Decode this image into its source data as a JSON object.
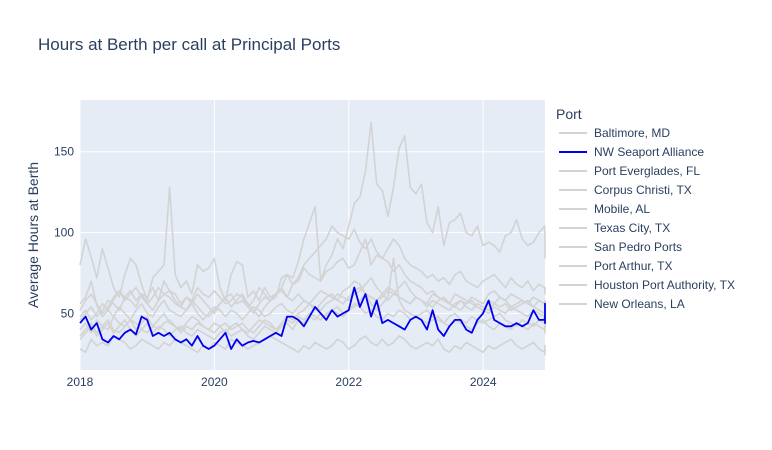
{
  "chart_data": {
    "type": "line",
    "title": "Hours at Berth per call at Principal Ports",
    "xlabel": "",
    "ylabel": "Average Hours at Berth",
    "x_ticks": [
      "2018",
      "2020",
      "2022",
      "2024"
    ],
    "y_ticks": [
      50,
      100,
      150
    ],
    "xlim": [
      2018.0,
      2024.92
    ],
    "ylim": [
      15,
      182
    ],
    "grid": true,
    "legend": {
      "title": "Port",
      "placement": "right"
    },
    "x_start": 2018.0,
    "x_step": 0.0833,
    "series": [
      {
        "name": "Baltimore, MD",
        "color": "#d3d3d3",
        "values": [
          80,
          96,
          85,
          72,
          90,
          78,
          66,
          60,
          74,
          84,
          80,
          68,
          58,
          72,
          76,
          80,
          128,
          74,
          66,
          70,
          62,
          80,
          76,
          78,
          84,
          66,
          58,
          74,
          82,
          80,
          60,
          64,
          58,
          66,
          60,
          62,
          66,
          74,
          72,
          82,
          96,
          106,
          116,
          70,
          80,
          86,
          96,
          90,
          104,
          118,
          122,
          138,
          168,
          130,
          126,
          110,
          128,
          152,
          160,
          128,
          124,
          130,
          106,
          100,
          116,
          92,
          106,
          108,
          112,
          100,
          98,
          104,
          92,
          94,
          92,
          88,
          98,
          100,
          108,
          96,
          92,
          94,
          100,
          104,
          96,
          90,
          86,
          84
        ]
      },
      {
        "name": "NW Seaport Alliance",
        "color": "#0000ee",
        "values": [
          44,
          48,
          40,
          44,
          34,
          32,
          36,
          34,
          38,
          40,
          37,
          48,
          46,
          36,
          38,
          36,
          38,
          34,
          32,
          34,
          30,
          36,
          30,
          28,
          30,
          34,
          38,
          28,
          34,
          30,
          32,
          33,
          32,
          34,
          36,
          38,
          36,
          48,
          48,
          46,
          42,
          48,
          54,
          50,
          46,
          52,
          48,
          50,
          52,
          66,
          54,
          62,
          48,
          58,
          44,
          46,
          44,
          42,
          40,
          46,
          48,
          46,
          40,
          52,
          40,
          36,
          42,
          46,
          46,
          40,
          38,
          46,
          50,
          58,
          46,
          44,
          42,
          42,
          44,
          42,
          44,
          52,
          46,
          46,
          48,
          44,
          56,
          52
        ]
      },
      {
        "name": "Port Everglades, FL",
        "color": "#d3d3d3",
        "values": [
          56,
          60,
          70,
          55,
          48,
          52,
          58,
          64,
          60,
          58,
          54,
          62,
          60,
          66,
          58,
          70,
          64,
          62,
          56,
          60,
          58,
          66,
          62,
          60,
          64,
          60,
          56,
          58,
          62,
          60,
          54,
          58,
          66,
          62,
          58,
          60,
          72,
          74,
          68,
          70,
          78,
          74,
          72,
          70,
          76,
          78,
          82,
          84,
          78,
          80,
          88,
          96,
          80,
          86,
          84,
          90,
          96,
          92,
          84,
          80,
          78,
          76,
          72,
          74,
          70,
          72,
          68,
          74,
          76,
          70,
          68,
          66,
          70,
          72,
          74,
          70,
          66,
          72,
          68,
          66,
          70,
          64,
          68,
          66,
          64,
          62,
          66,
          64
        ]
      },
      {
        "name": "Corpus Christi, TX",
        "color": "#d3d3d3",
        "values": [
          28,
          26,
          34,
          30,
          32,
          30,
          36,
          34,
          32,
          28,
          30,
          34,
          32,
          30,
          28,
          32,
          30,
          34,
          32,
          30,
          28,
          26,
          30,
          28,
          32,
          30,
          28,
          34,
          32,
          30,
          28,
          30,
          32,
          34,
          36,
          34,
          32,
          30,
          28,
          26,
          30,
          28,
          32,
          30,
          28,
          30,
          34,
          32,
          28,
          30,
          34,
          36,
          32,
          30,
          34,
          30,
          32,
          36,
          34,
          30,
          28,
          30,
          32,
          30,
          34,
          28,
          26,
          30,
          28,
          32,
          30,
          28,
          26,
          30,
          28,
          30,
          32,
          34,
          30,
          28,
          30,
          32,
          28,
          26,
          30,
          28,
          26,
          24
        ]
      },
      {
        "name": "Mobile, AL",
        "color": "#d3d3d3",
        "values": [
          52,
          58,
          62,
          56,
          50,
          54,
          60,
          64,
          58,
          62,
          66,
          60,
          56,
          52,
          58,
          62,
          60,
          56,
          54,
          52,
          58,
          54,
          50,
          48,
          52,
          56,
          60,
          54,
          58,
          62,
          56,
          52,
          48,
          54,
          58,
          62,
          66,
          60,
          58,
          62,
          58,
          56,
          60,
          64,
          62,
          60,
          58,
          64,
          66,
          70,
          68,
          62,
          60,
          58,
          60,
          64,
          62,
          60,
          58,
          56,
          60,
          58,
          56,
          62,
          60,
          58,
          56,
          54,
          58,
          56,
          60,
          58,
          56,
          62,
          64,
          60,
          58,
          62,
          60,
          58,
          56,
          60,
          58,
          56,
          58,
          54,
          56,
          52
        ]
      },
      {
        "name": "Texas City, TX",
        "color": "#d3d3d3",
        "values": [
          40,
          44,
          38,
          46,
          42,
          40,
          48,
          44,
          42,
          46,
          40,
          44,
          48,
          42,
          40,
          44,
          46,
          42,
          38,
          42,
          40,
          44,
          42,
          40,
          38,
          42,
          44,
          40,
          42,
          44,
          40,
          38,
          42,
          46,
          44,
          40,
          42,
          46,
          44,
          48,
          46,
          50,
          48,
          46,
          50,
          52,
          54,
          50,
          52,
          56,
          54,
          50,
          52,
          48,
          46,
          50,
          48,
          52,
          50,
          46,
          48,
          50,
          52,
          48,
          46,
          44,
          48,
          50,
          46,
          44,
          48,
          46,
          44,
          46,
          48,
          50,
          46,
          44,
          42,
          46,
          44,
          42,
          46,
          44,
          42,
          46,
          44,
          40
        ]
      },
      {
        "name": "San Pedro Ports",
        "color": "#d3d3d3",
        "values": [
          46,
          50,
          54,
          48,
          52,
          58,
          56,
          52,
          60,
          64,
          58,
          62,
          56,
          60,
          66,
          62,
          64,
          58,
          54,
          60,
          56,
          62,
          58,
          54,
          50,
          56,
          60,
          62,
          56,
          58,
          54,
          50,
          56,
          60,
          58,
          62,
          64,
          60,
          68,
          72,
          80,
          84,
          88,
          92,
          96,
          104,
          100,
          98,
          96,
          102,
          94,
          90,
          96,
          88,
          84,
          82,
          76,
          80,
          74,
          70,
          68,
          66,
          62,
          64,
          60,
          58,
          56,
          62,
          60,
          58,
          56,
          54,
          52,
          58,
          56,
          54,
          56,
          52,
          54,
          56,
          58,
          54,
          52,
          50,
          54,
          52,
          50,
          48
        ]
      },
      {
        "name": "Port Arthur, TX",
        "color": "#d3d3d3",
        "values": [
          34,
          38,
          42,
          36,
          40,
          44,
          38,
          42,
          46,
          40,
          36,
          40,
          44,
          38,
          42,
          40,
          36,
          40,
          42,
          38,
          36,
          40,
          38,
          36,
          34,
          38,
          40,
          36,
          38,
          40,
          36,
          34,
          38,
          42,
          40,
          38,
          42,
          44,
          40,
          46,
          44,
          48,
          46,
          50,
          48,
          52,
          50,
          48,
          52,
          54,
          58,
          62,
          56,
          52,
          56,
          60,
          84,
          58,
          52,
          50,
          48,
          46,
          44,
          46,
          48,
          44,
          42,
          46,
          44,
          42,
          40,
          44,
          46,
          42,
          40,
          44,
          42,
          40,
          44,
          42,
          40,
          44,
          42,
          40,
          42,
          40,
          38,
          40
        ]
      },
      {
        "name": "Houston Port Authority, TX",
        "color": "#d3d3d3",
        "values": [
          48,
          52,
          46,
          50,
          56,
          52,
          48,
          54,
          50,
          46,
          52,
          56,
          50,
          48,
          54,
          58,
          52,
          50,
          48,
          52,
          56,
          50,
          46,
          50,
          54,
          52,
          48,
          52,
          50,
          46,
          50,
          54,
          52,
          48,
          50,
          54,
          56,
          52,
          50,
          54,
          58,
          56,
          52,
          56,
          60,
          62,
          58,
          56,
          60,
          64,
          66,
          62,
          60,
          58,
          62,
          66,
          64,
          60,
          58,
          56,
          60,
          58,
          54,
          58,
          56,
          54,
          52,
          56,
          58,
          54,
          52,
          56,
          54,
          52,
          56,
          60,
          58,
          54,
          56,
          58,
          56,
          54,
          58,
          56,
          54,
          56,
          54,
          52
        ]
      },
      {
        "name": "New Orleans, LA",
        "color": "#d3d3d3",
        "values": [
          36,
          40,
          44,
          38,
          42,
          46,
          40,
          38,
          42,
          46,
          44,
          40,
          38,
          42,
          46,
          50,
          44,
          42,
          40,
          44,
          48,
          46,
          42,
          40,
          44,
          42,
          38,
          42,
          44,
          40,
          38,
          42,
          46,
          44,
          42,
          40,
          44,
          48,
          46,
          50,
          52,
          56,
          54,
          52,
          56,
          58,
          62,
          60,
          58,
          62,
          64,
          68,
          72,
          66,
          62,
          58,
          62,
          66,
          70,
          64,
          60,
          58,
          56,
          54,
          58,
          60,
          56,
          54,
          52,
          56,
          58,
          54,
          52,
          50,
          54,
          52,
          50,
          54,
          52,
          50,
          48,
          52,
          50,
          48,
          50,
          48,
          46,
          44
        ]
      }
    ]
  }
}
